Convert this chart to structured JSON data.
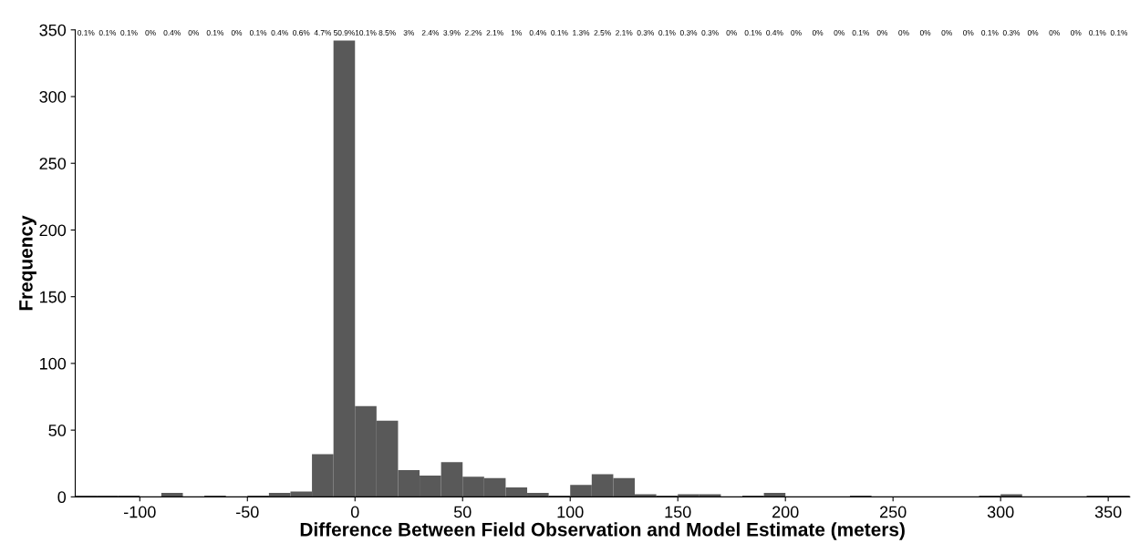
{
  "chart_data": {
    "type": "histogram",
    "xlabel": "Difference Between Field Observation and Model Estimate (meters)",
    "ylabel": "Frequency",
    "bins": [
      -130,
      -120,
      -110,
      -100,
      -90,
      -80,
      -70,
      -60,
      -50,
      -40,
      -30,
      -20,
      -10,
      0,
      10,
      20,
      30,
      40,
      50,
      60,
      70,
      80,
      90,
      100,
      110,
      120,
      130,
      140,
      150,
      160,
      170,
      180,
      190,
      200,
      210,
      220,
      230,
      240,
      250,
      260,
      270,
      280,
      290,
      300,
      310,
      320,
      330,
      340,
      350,
      360
    ],
    "values": [
      1,
      1,
      1,
      0,
      3,
      0,
      1,
      0,
      1,
      3,
      4,
      32,
      342,
      68,
      57,
      20,
      16,
      26,
      15,
      14,
      7,
      3,
      1,
      9,
      17,
      14,
      2,
      1,
      2,
      2,
      0,
      1,
      3,
      0,
      0,
      0,
      1,
      0,
      0,
      0,
      0,
      0,
      1,
      2,
      0,
      0,
      0,
      1,
      1
    ],
    "annotations": [
      "0.1%",
      "0.1%",
      "0.1%",
      "0%",
      "0.4%",
      "0%",
      "0.1%",
      "0%",
      "0.1%",
      "0.4%",
      "0.6%",
      "4.7%",
      "50.9%",
      "10.1%",
      "8.5%",
      "3%",
      "2.4%",
      "3.9%",
      "2.2%",
      "2.1%",
      "1%",
      "0.4%",
      "0.1%",
      "1.3%",
      "2.5%",
      "2.1%",
      "0.3%",
      "0.1%",
      "0.3%",
      "0.3%",
      "0%",
      "0.1%",
      "0.4%",
      "0%",
      "0%",
      "0%",
      "0.1%",
      "0%",
      "0%",
      "0%",
      "0%",
      "0%",
      "0.1%",
      "0.3%",
      "0%",
      "0%",
      "0%",
      "0.1%",
      "0.1%"
    ],
    "color": "#595959",
    "xlim": [
      -130,
      360
    ],
    "xticks": [
      -100,
      -50,
      0,
      50,
      100,
      150,
      200,
      250,
      300,
      350
    ],
    "ylim": [
      0,
      350
    ],
    "yticks": [
      0,
      50,
      100,
      150,
      200,
      250,
      300,
      350
    ],
    "grid": false,
    "legend": false
  }
}
